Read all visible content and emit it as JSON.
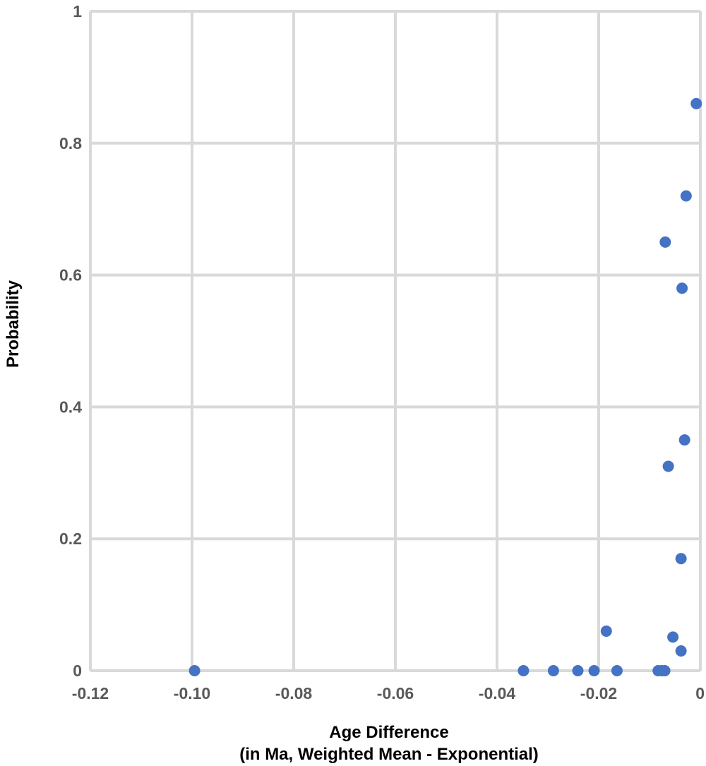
{
  "chart_data": {
    "type": "scatter",
    "title": "",
    "xlabel_lines": [
      "Age Difference",
      "(in Ma, Weighted Mean - Exponential)"
    ],
    "ylabel": "Probability",
    "xlim": [
      -0.12,
      0
    ],
    "ylim": [
      0,
      1
    ],
    "x_ticks": [
      -0.12,
      -0.1,
      -0.08,
      -0.06,
      -0.04,
      -0.02,
      0
    ],
    "x_tick_labels": [
      "-0.12",
      "-0.10",
      "-0.08",
      "-0.06",
      "-0.04",
      "-0.02",
      "0"
    ],
    "y_ticks": [
      0,
      0.2,
      0.4,
      0.6,
      0.8,
      1
    ],
    "y_tick_labels": [
      "0",
      "0.2",
      "0.4",
      "0.6",
      "0.8",
      "1"
    ],
    "grid": true,
    "legend": "none",
    "colors": {
      "marker": "#4472c4",
      "grid": "#d9d9d9",
      "tick_text": "#595959",
      "axis_title": "#000000"
    },
    "series": [
      {
        "points": [
          {
            "x": -0.0995,
            "y": 0.0
          },
          {
            "x": -0.0348,
            "y": 0.0
          },
          {
            "x": -0.0289,
            "y": 0.0
          },
          {
            "x": -0.0241,
            "y": 0.0
          },
          {
            "x": -0.0209,
            "y": 0.0
          },
          {
            "x": -0.0164,
            "y": 0.0
          },
          {
            "x": -0.0185,
            "y": 0.06
          },
          {
            "x": -0.0083,
            "y": 0.0
          },
          {
            "x": -0.0076,
            "y": 0.0
          },
          {
            "x": -0.007,
            "y": 0.0
          },
          {
            "x": -0.0054,
            "y": 0.051
          },
          {
            "x": -0.0038,
            "y": 0.03
          },
          {
            "x": -0.0038,
            "y": 0.17
          },
          {
            "x": -0.0063,
            "y": 0.31
          },
          {
            "x": -0.0031,
            "y": 0.35
          },
          {
            "x": -0.0036,
            "y": 0.58
          },
          {
            "x": -0.0069,
            "y": 0.65
          },
          {
            "x": -0.0028,
            "y": 0.72
          },
          {
            "x": -0.0008,
            "y": 0.86
          }
        ]
      }
    ]
  }
}
